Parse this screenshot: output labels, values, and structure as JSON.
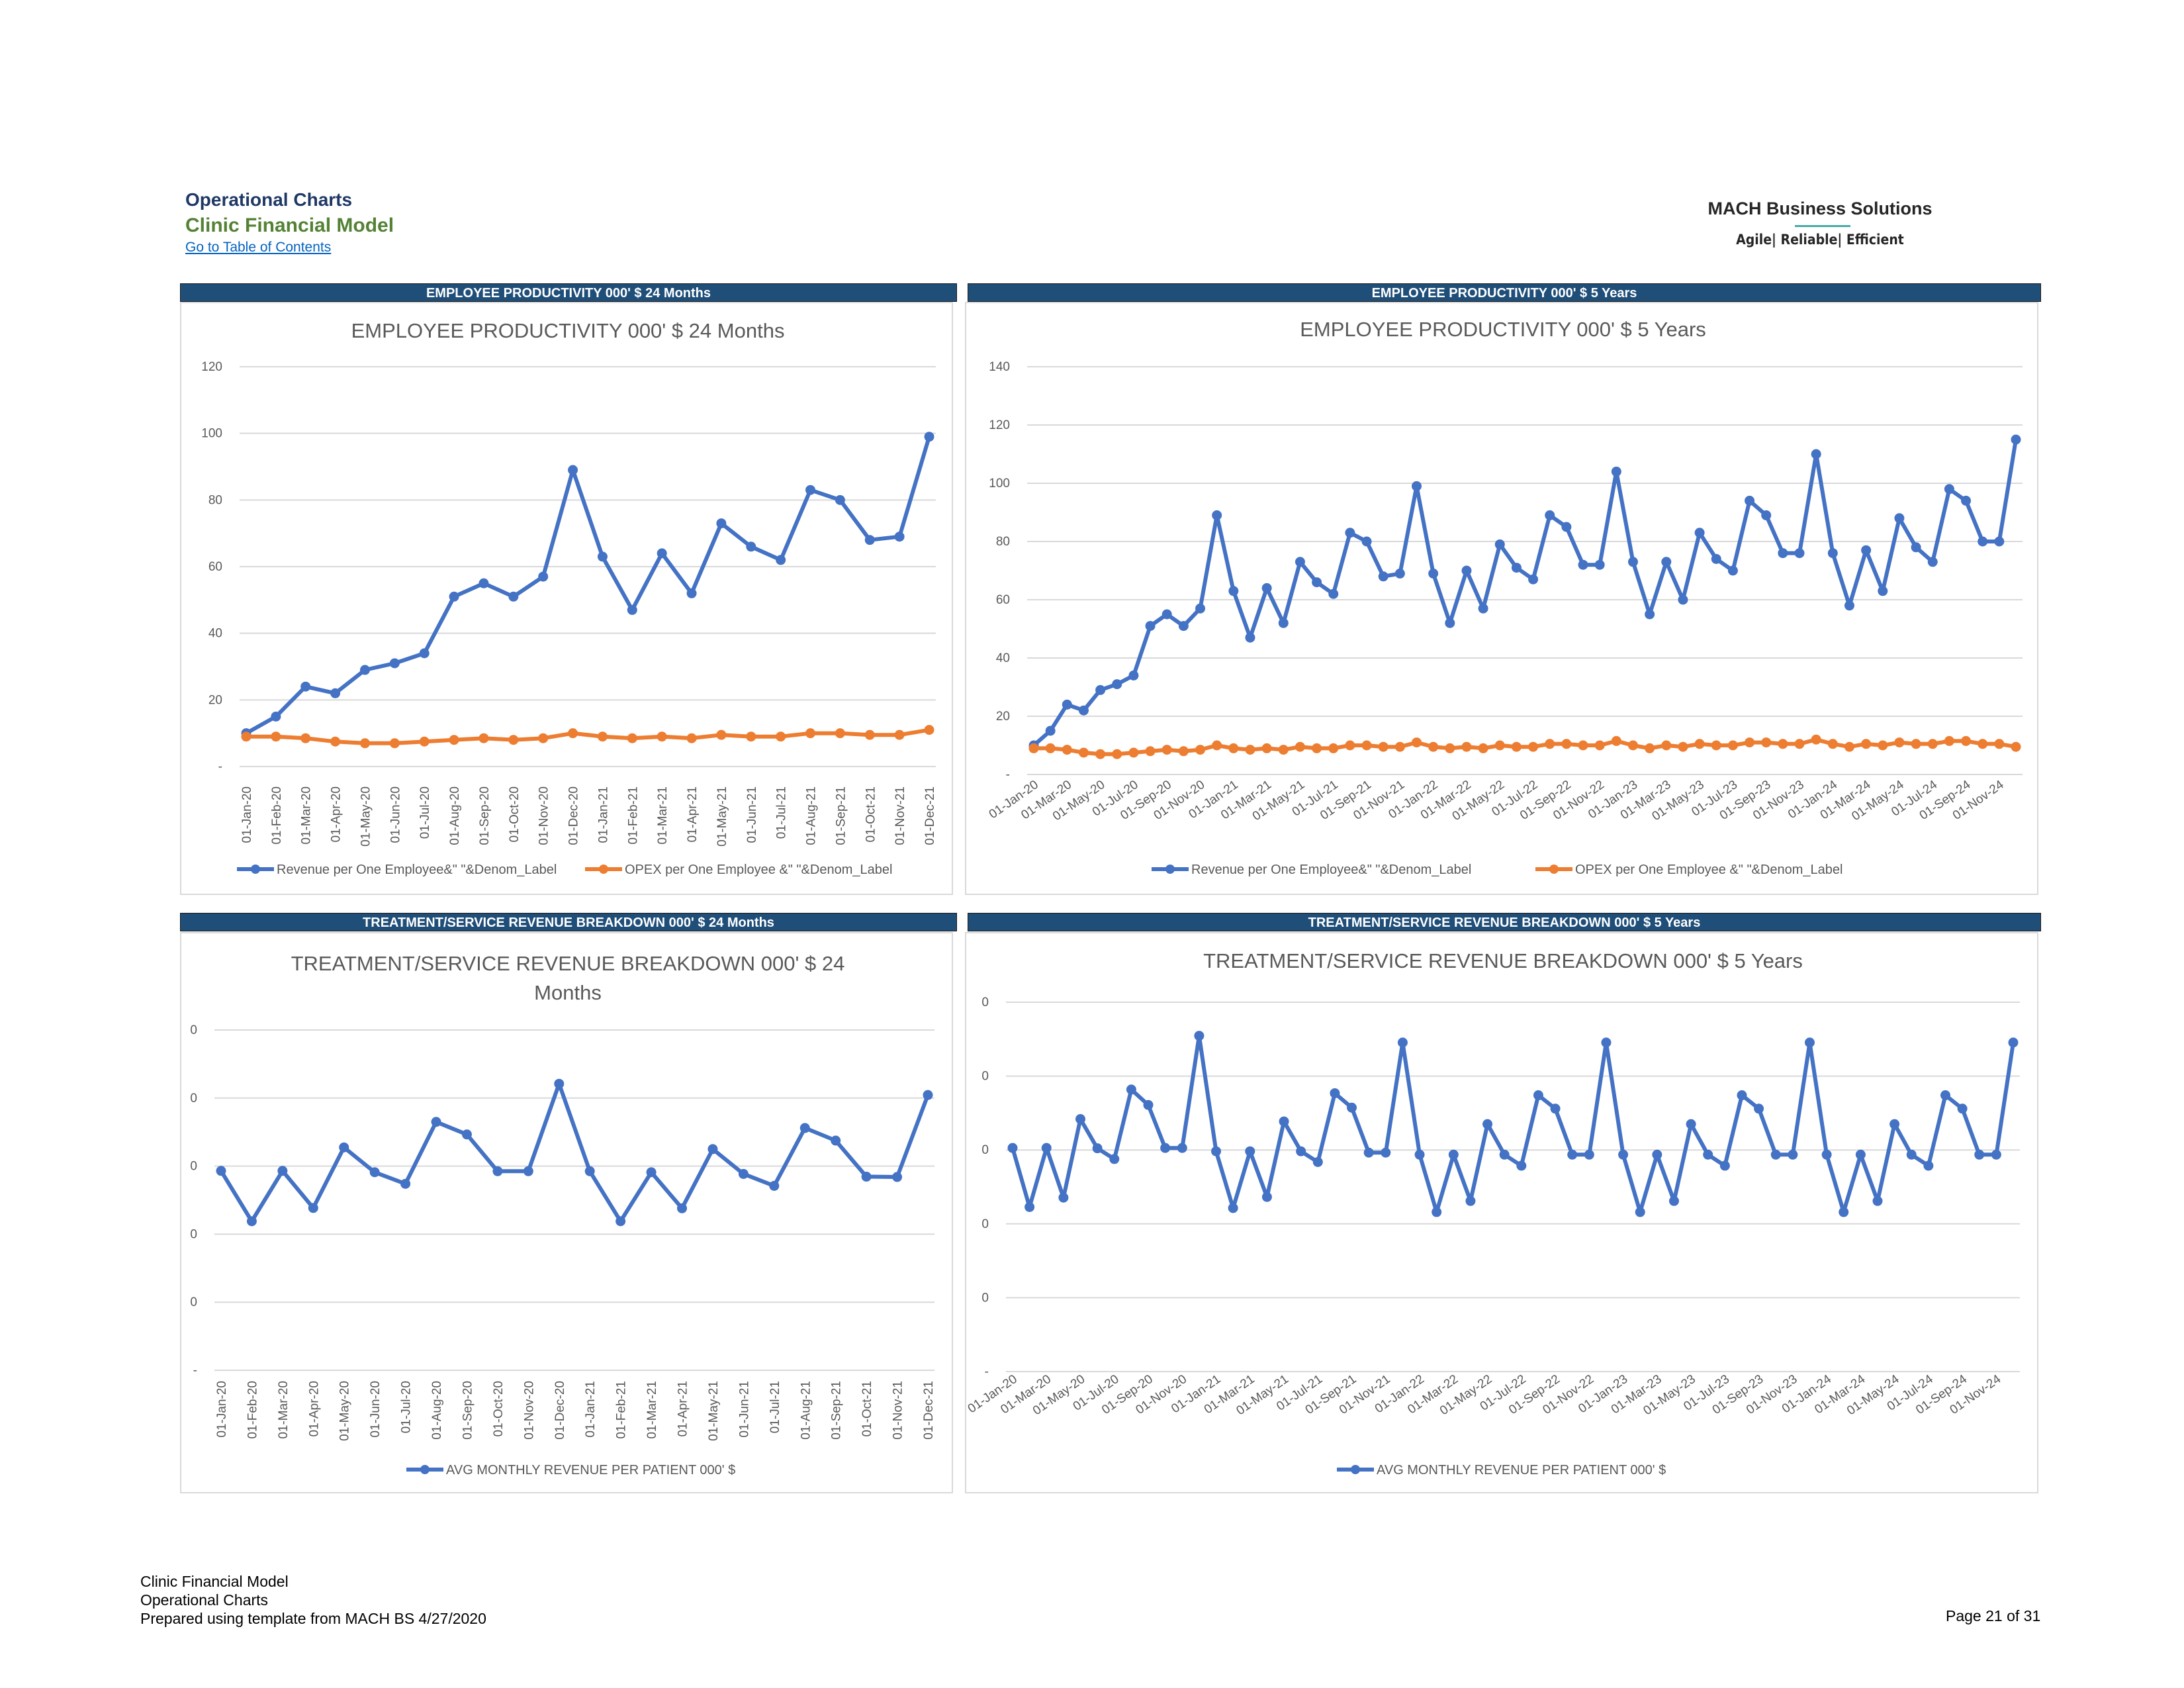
{
  "header": {
    "title": "Operational Charts",
    "subtitle": "Clinic Financial Model",
    "toc_link": "Go to Table of Contents"
  },
  "logo": {
    "name": "MACH Business Solutions",
    "tagline": "Agile| Reliable| Efficient"
  },
  "section_bars": {
    "emp_24": "EMPLOYEE PRODUCTIVITY  000' $ 24 Months",
    "emp_5y": "EMPLOYEE PRODUCTIVITY 000' $ 5 Years",
    "rev_24": "TREATMENT/SERVICE REVENUE BREAKDOWN 000' $ 24 Months",
    "rev_5y": "TREATMENT/SERVICE REVENUE BREAKDOWN 000' $ 5 Years"
  },
  "colors": {
    "blue": "#4472c4",
    "orange": "#ed7d31",
    "bar": "#1f4e79",
    "grid": "#d9d9d9"
  },
  "chart_data": [
    {
      "id": "emp24",
      "type": "line",
      "title": "EMPLOYEE PRODUCTIVITY  000' $ 24 Months",
      "ylim": [
        0,
        120
      ],
      "yticks": [
        "-",
        "20",
        "40",
        "60",
        "80",
        "100",
        "120"
      ],
      "grid": true,
      "legend": "bottom",
      "x": [
        "01-Jan-20",
        "01-Feb-20",
        "01-Mar-20",
        "01-Apr-20",
        "01-May-20",
        "01-Jun-20",
        "01-Jul-20",
        "01-Aug-20",
        "01-Sep-20",
        "01-Oct-20",
        "01-Nov-20",
        "01-Dec-20",
        "01-Jan-21",
        "01-Feb-21",
        "01-Mar-21",
        "01-Apr-21",
        "01-May-21",
        "01-Jun-21",
        "01-Jul-21",
        "01-Aug-21",
        "01-Sep-21",
        "01-Oct-21",
        "01-Nov-21",
        "01-Dec-21"
      ],
      "series": [
        {
          "name": "Revenue per One Employee&\" \"&Denom_Label",
          "color": "#4472c4",
          "values": [
            10,
            15,
            24,
            22,
            29,
            31,
            34,
            51,
            55,
            51,
            57,
            89,
            63,
            47,
            64,
            52,
            73,
            66,
            62,
            83,
            80,
            68,
            69,
            99
          ]
        },
        {
          "name": "OPEX per One Employee &\" \"&Denom_Label",
          "color": "#ed7d31",
          "values": [
            9,
            9,
            8.5,
            7.5,
            7,
            7,
            7.5,
            8,
            8.5,
            8,
            8.5,
            10,
            9,
            8.5,
            9,
            8.5,
            9.5,
            9,
            9,
            10,
            10,
            9.5,
            9.5,
            11
          ]
        }
      ]
    },
    {
      "id": "emp5y",
      "type": "line",
      "title": "EMPLOYEE PRODUCTIVITY 000' $ 5 Years",
      "ylim": [
        0,
        140
      ],
      "yticks": [
        "-",
        "20",
        "40",
        "60",
        "80",
        "100",
        "120",
        "140"
      ],
      "grid": true,
      "legend": "bottom",
      "x": [
        "01-Jan-20",
        "01-Feb-20",
        "01-Mar-20",
        "01-Apr-20",
        "01-May-20",
        "01-Jun-20",
        "01-Jul-20",
        "01-Aug-20",
        "01-Sep-20",
        "01-Oct-20",
        "01-Nov-20",
        "01-Dec-20",
        "01-Jan-21",
        "01-Feb-21",
        "01-Mar-21",
        "01-Apr-21",
        "01-May-21",
        "01-Jun-21",
        "01-Jul-21",
        "01-Aug-21",
        "01-Sep-21",
        "01-Oct-21",
        "01-Nov-21",
        "01-Dec-21",
        "01-Jan-22",
        "01-Feb-22",
        "01-Mar-22",
        "01-Apr-22",
        "01-May-22",
        "01-Jun-22",
        "01-Jul-22",
        "01-Aug-22",
        "01-Sep-22",
        "01-Oct-22",
        "01-Nov-22",
        "01-Dec-22",
        "01-Jan-23",
        "01-Feb-23",
        "01-Mar-23",
        "01-Apr-23",
        "01-May-23",
        "01-Jun-23",
        "01-Jul-23",
        "01-Aug-23",
        "01-Sep-23",
        "01-Oct-23",
        "01-Nov-23",
        "01-Dec-23",
        "01-Jan-24",
        "01-Feb-24",
        "01-Mar-24",
        "01-Apr-24",
        "01-May-24",
        "01-Jun-24",
        "01-Jul-24",
        "01-Aug-24",
        "01-Sep-24",
        "01-Oct-24",
        "01-Nov-24",
        "01-Dec-24"
      ],
      "xtick_labels": [
        "01-Jan-20",
        "01-Mar-20",
        "01-May-20",
        "01-Jul-20",
        "01-Sep-20",
        "01-Nov-20",
        "01-Jan-21",
        "01-Mar-21",
        "01-May-21",
        "01-Jul-21",
        "01-Sep-21",
        "01-Nov-21",
        "01-Jan-22",
        "01-Mar-22",
        "01-May-22",
        "01-Jul-22",
        "01-Sep-22",
        "01-Nov-22",
        "01-Jan-23",
        "01-Mar-23",
        "01-May-23",
        "01-Jul-23",
        "01-Sep-23",
        "01-Nov-23",
        "01-Jan-24",
        "01-Mar-24",
        "01-May-24",
        "01-Jul-24",
        "01-Sep-24",
        "01-Nov-24"
      ],
      "series": [
        {
          "name": "Revenue per One Employee&\" \"&Denom_Label",
          "color": "#4472c4",
          "values": [
            10,
            15,
            24,
            22,
            29,
            31,
            34,
            51,
            55,
            51,
            57,
            89,
            63,
            47,
            64,
            52,
            73,
            66,
            62,
            83,
            80,
            68,
            69,
            99,
            69,
            52,
            70,
            57,
            79,
            71,
            67,
            89,
            85,
            72,
            72,
            104,
            73,
            55,
            73,
            60,
            83,
            74,
            70,
            94,
            89,
            76,
            76,
            110,
            76,
            58,
            77,
            63,
            88,
            78,
            73,
            98,
            94,
            80,
            80,
            115
          ]
        },
        {
          "name": "OPEX per One Employee &\" \"&Denom_Label",
          "color": "#ed7d31",
          "values": [
            9,
            9,
            8.5,
            7.5,
            7,
            7,
            7.5,
            8,
            8.5,
            8,
            8.5,
            10,
            9,
            8.5,
            9,
            8.5,
            9.5,
            9,
            9,
            10,
            10,
            9.5,
            9.5,
            11,
            9.5,
            9,
            9.5,
            9,
            10,
            9.5,
            9.5,
            10.5,
            10.5,
            10,
            10,
            11.5,
            10,
            9,
            10,
            9.5,
            10.5,
            10,
            10,
            11,
            11,
            10.5,
            10.5,
            12,
            10.5,
            9.5,
            10.5,
            10,
            11,
            10.5,
            10.5,
            11.5,
            11.5,
            10.5,
            10.5,
            9.5
          ]
        }
      ]
    },
    {
      "id": "rev24",
      "type": "line",
      "title_lines": [
        "TREATMENT/SERVICE REVENUE BREAKDOWN 000' $ 24",
        "Months"
      ],
      "ylim": [
        0,
        1
      ],
      "yticks": [
        "-",
        "0",
        "0",
        "0",
        "0",
        "0"
      ],
      "grid": true,
      "legend": "bottom",
      "x": [
        "01-Jan-20",
        "01-Feb-20",
        "01-Mar-20",
        "01-Apr-20",
        "01-May-20",
        "01-Jun-20",
        "01-Jul-20",
        "01-Aug-20",
        "01-Sep-20",
        "01-Oct-20",
        "01-Nov-20",
        "01-Dec-20",
        "01-Jan-21",
        "01-Feb-21",
        "01-Mar-21",
        "01-Apr-21",
        "01-May-21",
        "01-Jun-21",
        "01-Jul-21",
        "01-Aug-21",
        "01-Sep-21",
        "01-Oct-21",
        "01-Nov-21",
        "01-Dec-21"
      ],
      "series": [
        {
          "name": "AVG MONTHLY REVENUE PER PATIENT 000' $",
          "color": "#4472c4",
          "values": [
            0.586,
            0.438,
            0.586,
            0.477,
            0.655,
            0.582,
            0.548,
            0.73,
            0.693,
            0.585,
            0.585,
            0.842,
            0.585,
            0.438,
            0.582,
            0.476,
            0.65,
            0.577,
            0.542,
            0.712,
            0.675,
            0.569,
            0.568,
            0.809
          ]
        }
      ]
    },
    {
      "id": "rev5y",
      "type": "line",
      "title": "TREATMENT/SERVICE REVENUE BREAKDOWN 000' $ 5 Years",
      "ylim": [
        0,
        1.1
      ],
      "yticks": [
        "-",
        "0",
        "0",
        "0",
        "0",
        "0"
      ],
      "grid": true,
      "legend": "bottom",
      "x": [
        "01-Jan-20",
        "01-Feb-20",
        "01-Mar-20",
        "01-Apr-20",
        "01-May-20",
        "01-Jun-20",
        "01-Jul-20",
        "01-Aug-20",
        "01-Sep-20",
        "01-Oct-20",
        "01-Nov-20",
        "01-Dec-20",
        "01-Jan-21",
        "01-Feb-21",
        "01-Mar-21",
        "01-Apr-21",
        "01-May-21",
        "01-Jun-21",
        "01-Jul-21",
        "01-Aug-21",
        "01-Sep-21",
        "01-Oct-21",
        "01-Nov-21",
        "01-Dec-21",
        "01-Jan-22",
        "01-Feb-22",
        "01-Mar-22",
        "01-Apr-22",
        "01-May-22",
        "01-Jun-22",
        "01-Jul-22",
        "01-Aug-22",
        "01-Sep-22",
        "01-Oct-22",
        "01-Nov-22",
        "01-Dec-22",
        "01-Jan-23",
        "01-Feb-23",
        "01-Mar-23",
        "01-Apr-23",
        "01-May-23",
        "01-Jun-23",
        "01-Jul-23",
        "01-Aug-23",
        "01-Sep-23",
        "01-Oct-23",
        "01-Nov-23",
        "01-Dec-23",
        "01-Jan-24",
        "01-Feb-24",
        "01-Mar-24",
        "01-Apr-24",
        "01-May-24",
        "01-Jun-24",
        "01-Jul-24",
        "01-Aug-24",
        "01-Sep-24",
        "01-Oct-24",
        "01-Nov-24",
        "01-Dec-24"
      ],
      "xtick_labels": [
        "01-Jan-20",
        "01-Mar-20",
        "01-May-20",
        "01-Jul-20",
        "01-Sep-20",
        "01-Nov-20",
        "01-Jan-21",
        "01-Mar-21",
        "01-May-21",
        "01-Jul-21",
        "01-Sep-21",
        "01-Nov-21",
        "01-Jan-22",
        "01-Mar-22",
        "01-May-22",
        "01-Jul-22",
        "01-Sep-22",
        "01-Nov-22",
        "01-Jan-23",
        "01-Mar-23",
        "01-May-23",
        "01-Jul-23",
        "01-Sep-23",
        "01-Nov-23",
        "01-Jan-24",
        "01-Mar-24",
        "01-May-24",
        "01-Jul-24",
        "01-Sep-24",
        "01-Nov-24"
      ],
      "series": [
        {
          "name": "AVG MONTHLY REVENUE PER PATIENT 000' $",
          "color": "#4472c4",
          "values": [
            0.666,
            0.49,
            0.666,
            0.518,
            0.752,
            0.665,
            0.633,
            0.84,
            0.794,
            0.666,
            0.666,
            1.0,
            0.656,
            0.487,
            0.656,
            0.52,
            0.745,
            0.656,
            0.624,
            0.829,
            0.786,
            0.652,
            0.652,
            0.98,
            0.646,
            0.475,
            0.646,
            0.508,
            0.737,
            0.646,
            0.613,
            0.823,
            0.783,
            0.646,
            0.646,
            0.98,
            0.646,
            0.475,
            0.646,
            0.508,
            0.737,
            0.646,
            0.613,
            0.823,
            0.783,
            0.646,
            0.646,
            0.98,
            0.646,
            0.475,
            0.646,
            0.508,
            0.737,
            0.646,
            0.613,
            0.823,
            0.783,
            0.646,
            0.646,
            0.98
          ]
        }
      ]
    }
  ],
  "footer": {
    "line1": "Clinic Financial Model",
    "line2": "Operational Charts",
    "line3": "Prepared using template from MACH BS 4/27/2020",
    "page": "Page 21 of 31"
  }
}
